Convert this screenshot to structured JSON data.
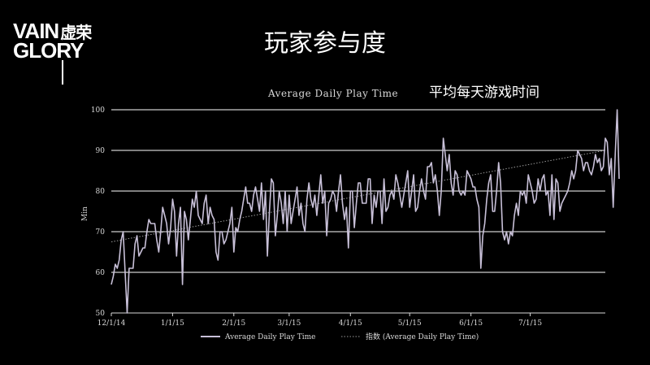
{
  "slide": {
    "title": "玩家参与度",
    "logo_line1": "VAIN",
    "logo_line1_cn": "虚荣",
    "logo_line2": "GLORY"
  },
  "colors": {
    "background": "#000000",
    "series": "#c8c0d8",
    "trendline": "#9a9a9a",
    "gridline": "#ffffff"
  },
  "chart_data": {
    "type": "line",
    "title": "Average Daily Play Time",
    "subtitle": "平均每天游戏时间",
    "xlabel": "",
    "ylabel": "Min",
    "ylim": [
      50,
      100
    ],
    "yticks": [
      50,
      60,
      70,
      80,
      90,
      100
    ],
    "xticks": [
      "12/1/14",
      "1/1/15",
      "2/1/15",
      "3/1/15",
      "4/1/15",
      "5/1/15",
      "6/1/15",
      "7/1/15"
    ],
    "xrange": [
      "2014-12-01",
      "2015-08-08"
    ],
    "grid": true,
    "legend_position": "bottom",
    "series": [
      {
        "name": "Average Daily Play Time",
        "start_date": "2014-12-01",
        "values": [
          57,
          59,
          62,
          61,
          63,
          68,
          70,
          60,
          50,
          61,
          61,
          61,
          67,
          69,
          64,
          65,
          66,
          66,
          70,
          73,
          72,
          72,
          72,
          68,
          65,
          70,
          76,
          74,
          72,
          67,
          71,
          78,
          75,
          64,
          72,
          76,
          57,
          75,
          73,
          68,
          73,
          78,
          76,
          80,
          74,
          73,
          72,
          77,
          79,
          72,
          76,
          74,
          73,
          65,
          63,
          70,
          70,
          67,
          68,
          70,
          72,
          76,
          65,
          71,
          70,
          73,
          75,
          78,
          81,
          77,
          77,
          75,
          79,
          81,
          78,
          75,
          82,
          73,
          80,
          64,
          75,
          83,
          82,
          69,
          74,
          80,
          77,
          72,
          80,
          70,
          79,
          72,
          75,
          78,
          81,
          74,
          77,
          72,
          70,
          78,
          82,
          78,
          76,
          79,
          74,
          79,
          84,
          77,
          80,
          69,
          77,
          78,
          80,
          79,
          75,
          80,
          84,
          77,
          73,
          76,
          66,
          80,
          80,
          71,
          77,
          82,
          82,
          77,
          77,
          77,
          83,
          83,
          72,
          79,
          76,
          80,
          80,
          72,
          83,
          75,
          76,
          79,
          80,
          78,
          84,
          82,
          79,
          76,
          79,
          82,
          85,
          76,
          80,
          84,
          75,
          76,
          80,
          83,
          80,
          78,
          86,
          86,
          87,
          82,
          84,
          80,
          74,
          80,
          93,
          89,
          85,
          89,
          82,
          79,
          85,
          84,
          80,
          79,
          80,
          79,
          85,
          84,
          83,
          81,
          81,
          78,
          76,
          61,
          69,
          72,
          78,
          82,
          84,
          75,
          75,
          80,
          87,
          82,
          70,
          68,
          70,
          67,
          70,
          69,
          74,
          77,
          74,
          80,
          79,
          80,
          77,
          84,
          82,
          80,
          77,
          78,
          83,
          80,
          83,
          84,
          79,
          80,
          74,
          84,
          73,
          83,
          82,
          75,
          77,
          78,
          79,
          80,
          82,
          85,
          83,
          85,
          90,
          89,
          88,
          85,
          87,
          87,
          85,
          84,
          86,
          89,
          87,
          88,
          85,
          86,
          93,
          92,
          84,
          88,
          76,
          89,
          100,
          83
        ]
      },
      {
        "name": "指数 (Average Daily Play Time)",
        "type": "trendline",
        "start_value": 67.5,
        "end_value": 90.0
      }
    ]
  }
}
